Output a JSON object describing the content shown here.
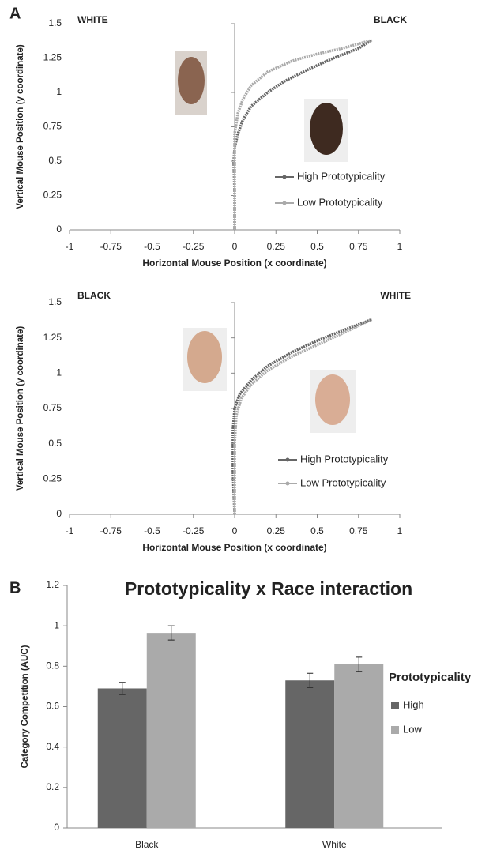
{
  "chart_data": [
    {
      "type": "line",
      "panel_label": "A",
      "left_label": "WHITE",
      "right_label": "BLACK",
      "x_label": "Horizontal Mouse Position (x coordinate)",
      "y_label": "Vertical Mouse Position (y coordinate)",
      "xlim": [
        -1,
        1
      ],
      "xticks": [
        -1,
        -0.75,
        -0.5,
        -0.25,
        0,
        0.25,
        0.5,
        0.75,
        1
      ],
      "ylim": [
        0,
        1.5
      ],
      "yticks": [
        0,
        0.25,
        0.5,
        0.75,
        1,
        1.25,
        1.5
      ],
      "series": [
        {
          "name": "High Prototypicality",
          "color": "#666666",
          "x": [
            0,
            0,
            -0.005,
            0,
            0.02,
            0.05,
            0.1,
            0.2,
            0.3,
            0.45,
            0.6,
            0.75,
            0.83
          ],
          "values": [
            0,
            0.25,
            0.5,
            0.6,
            0.7,
            0.8,
            0.9,
            1.0,
            1.08,
            1.17,
            1.25,
            1.32,
            1.38
          ]
        },
        {
          "name": "Low Prototypicality",
          "color": "#aaaaaa",
          "x": [
            0,
            0,
            0,
            0.02,
            0.05,
            0.1,
            0.2,
            0.35,
            0.5,
            0.65,
            0.83
          ],
          "values": [
            0,
            0.5,
            0.7,
            0.85,
            0.95,
            1.05,
            1.15,
            1.23,
            1.28,
            1.32,
            1.38
          ]
        }
      ]
    },
    {
      "type": "line",
      "left_label": "BLACK",
      "right_label": "WHITE",
      "x_label": "Horizontal Mouse Position (x coordinate)",
      "y_label": "Vertical Mouse Position (y coordinate)",
      "xlim": [
        -1,
        1
      ],
      "xticks": [
        -1,
        -0.75,
        -0.5,
        -0.25,
        0,
        0.25,
        0.5,
        0.75,
        1
      ],
      "ylim": [
        0,
        1.5
      ],
      "yticks": [
        0,
        0.25,
        0.5,
        0.75,
        1,
        1.25,
        1.5
      ],
      "series": [
        {
          "name": "High Prototypicality",
          "color": "#666666",
          "x": [
            0,
            -0.01,
            -0.01,
            0,
            0.03,
            0.1,
            0.2,
            0.35,
            0.5,
            0.65,
            0.83
          ],
          "values": [
            0,
            0.3,
            0.6,
            0.75,
            0.85,
            0.95,
            1.05,
            1.15,
            1.23,
            1.3,
            1.38
          ]
        },
        {
          "name": "Low Prototypicality",
          "color": "#aaaaaa",
          "x": [
            0,
            0,
            0.01,
            0.04,
            0.1,
            0.2,
            0.35,
            0.5,
            0.65,
            0.83
          ],
          "values": [
            0,
            0.5,
            0.7,
            0.82,
            0.92,
            1.02,
            1.12,
            1.2,
            1.28,
            1.38
          ]
        }
      ]
    },
    {
      "type": "bar",
      "panel_label": "B",
      "title": "Prototypicality x Race interaction",
      "y_label": "Category Competition (AUC)",
      "legend_title": "Prototypicality",
      "categories": [
        "Black",
        "White"
      ],
      "ylim": [
        0,
        1.2
      ],
      "yticks": [
        0,
        0.2,
        0.4,
        0.6,
        0.8,
        1,
        1.2
      ],
      "series": [
        {
          "name": "High",
          "color": "#666666",
          "values": [
            0.69,
            0.73
          ],
          "errors": [
            0.03,
            0.035
          ]
        },
        {
          "name": "Low",
          "color": "#aaaaaa",
          "values": [
            0.965,
            0.81
          ],
          "errors": [
            0.035,
            0.035
          ]
        }
      ]
    }
  ]
}
